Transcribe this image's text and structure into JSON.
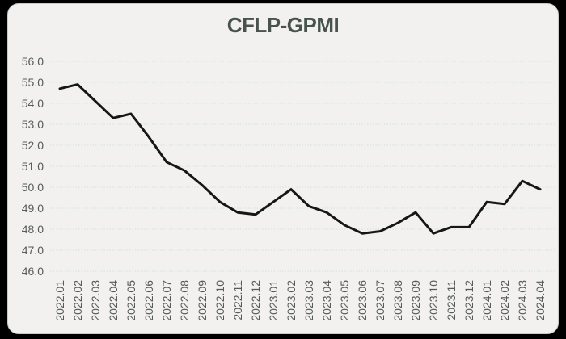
{
  "page": {
    "background_color": "#000000",
    "card_background_color": "#f2f1ef"
  },
  "chart_data": {
    "type": "line",
    "title": "CFLP-GPMI",
    "title_color": "#485350",
    "categories": [
      "2022.01",
      "2022.02",
      "2022.03",
      "2022.04",
      "2022.05",
      "2022.06",
      "2022.07",
      "2022.08",
      "2022.09",
      "2022.10",
      "2022.11",
      "2022.12",
      "2023.01",
      "2023.02",
      "2023.03",
      "2023.04",
      "2023.05",
      "2023.06",
      "2023.07",
      "2023.08",
      "2023.09",
      "2023.10",
      "2023.11",
      "2023.12",
      "2024.01",
      "2024.02",
      "2024.03",
      "2024.04"
    ],
    "series": [
      {
        "name": "CFLP-GPMI",
        "color": "#161616",
        "values": [
          54.7,
          54.9,
          54.1,
          53.3,
          53.5,
          52.4,
          51.2,
          50.8,
          50.1,
          49.3,
          48.8,
          48.7,
          49.3,
          49.9,
          49.1,
          48.8,
          48.2,
          47.8,
          47.9,
          48.3,
          48.8,
          47.8,
          48.1,
          48.1,
          49.3,
          49.2,
          50.3,
          49.9
        ]
      }
    ],
    "xlabel": "",
    "ylabel": "",
    "ylim": [
      46.0,
      56.0
    ],
    "ytick_labels": [
      "56.0",
      "55.0",
      "54.0",
      "53.0",
      "52.0",
      "51.0",
      "50.0",
      "49.0",
      "48.0",
      "47.0",
      "46.0"
    ],
    "grid": "horizontal-dotted",
    "gridline_color": "#cfe0e2",
    "tick_label_color": "#565b5b",
    "legend_position": "none",
    "markers": "none"
  }
}
